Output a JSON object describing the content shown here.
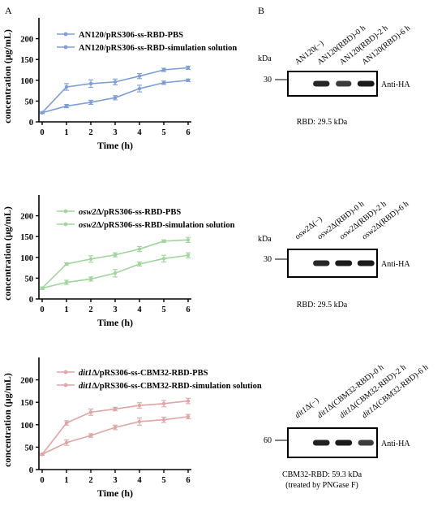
{
  "panel_labels": {
    "a": "A",
    "b": "B"
  },
  "colors": {
    "blue": "#7b9fd6",
    "green": "#9fd69a",
    "red": "#e0a4a4"
  },
  "chart_data": [
    {
      "type": "line",
      "title": "",
      "xlabel": "Time (h)",
      "ylabel": "concentration (μg/mL)",
      "xlim": [
        0,
        6
      ],
      "ylim": [
        0,
        250
      ],
      "xticks": [
        "0",
        "1",
        "2",
        "3",
        "4",
        "5",
        "6"
      ],
      "yticks": [
        "0",
        "50",
        "100",
        "150",
        "200"
      ],
      "series": [
        {
          "name": "AN120/pRS306-ss-RBD-PBS",
          "name_italic": "",
          "name_rest": "AN120/pRS306-ss-RBD-PBS",
          "color": "#7b9fd6",
          "x": [
            0,
            1,
            2,
            3,
            4,
            5,
            6
          ],
          "y": [
            22,
            38,
            47,
            58,
            80,
            94,
            100
          ],
          "err": [
            2,
            4,
            5,
            5,
            8,
            4,
            3
          ]
        },
        {
          "name": "AN120/pRS306-ss-RBD-simulation solution",
          "name_italic": "",
          "name_rest": "AN120/pRS306-ss-RBD-simulation solution",
          "color": "#7b9fd6",
          "x": [
            0,
            1,
            2,
            3,
            4,
            5,
            6
          ],
          "y": [
            22,
            84,
            92,
            96,
            110,
            125,
            130
          ],
          "err": [
            2,
            8,
            9,
            7,
            6,
            4,
            4
          ]
        }
      ]
    },
    {
      "type": "line",
      "title": "",
      "xlabel": "Time (h)",
      "ylabel": "concentration (μg/mL)",
      "xlim": [
        0,
        6
      ],
      "ylim": [
        0,
        250
      ],
      "xticks": [
        "0",
        "1",
        "2",
        "3",
        "4",
        "5",
        "6"
      ],
      "yticks": [
        "0",
        "50",
        "100",
        "150",
        "200"
      ],
      "series": [
        {
          "name": "osw2Δ/pRS306-ss-RBD-PBS",
          "name_italic": "osw2",
          "name_rest": "Δ/pRS306-ss-RBD-PBS",
          "color": "#9fd69a",
          "x": [
            0,
            1,
            2,
            3,
            4,
            5,
            6
          ],
          "y": [
            26,
            40,
            48,
            62,
            84,
            97,
            105
          ],
          "err": [
            3,
            5,
            5,
            9,
            5,
            8,
            6
          ]
        },
        {
          "name": "osw2Δ/pRS306-ss-RBD-simulation solution",
          "name_italic": "osw2",
          "name_rest": "Δ/pRS306-ss-RBD-simulation solution",
          "color": "#9fd69a",
          "x": [
            0,
            1,
            2,
            3,
            4,
            5,
            6
          ],
          "y": [
            26,
            84,
            96,
            106,
            120,
            139,
            142
          ],
          "err": [
            3,
            3,
            8,
            5,
            6,
            3,
            6
          ]
        }
      ]
    },
    {
      "type": "line",
      "title": "",
      "xlabel": "Time (h)",
      "ylabel": "concentration (μg/mL)",
      "xlim": [
        0,
        6
      ],
      "ylim": [
        0,
        250
      ],
      "xticks": [
        "0",
        "1",
        "2",
        "3",
        "4",
        "5",
        "6"
      ],
      "yticks": [
        "0",
        "50",
        "100",
        "150",
        "200"
      ],
      "series": [
        {
          "name": "dit1Δ/pRS306-ss-CBM32-RBD-PBS",
          "name_italic": "dit1",
          "name_rest": "Δ/pRS306-ss-CBM32-RBD-PBS",
          "color": "#e0a4a4",
          "x": [
            0,
            1,
            2,
            3,
            4,
            5,
            6
          ],
          "y": [
            34,
            60,
            76,
            94,
            107,
            111,
            118
          ],
          "err": [
            2,
            6,
            4,
            5,
            8,
            6,
            5
          ]
        },
        {
          "name": "dit1Δ/pRS306-ss-CBM32-RBD-simulation solution",
          "name_italic": "dit1",
          "name_rest": "Δ/pRS306-ss-CBM32-RBD-simulation solution",
          "color": "#e0a4a4",
          "x": [
            0,
            1,
            2,
            3,
            4,
            5,
            6
          ],
          "y": [
            34,
            104,
            128,
            135,
            143,
            147,
            153
          ],
          "err": [
            2,
            5,
            7,
            4,
            6,
            7,
            6
          ]
        }
      ]
    }
  ],
  "blots": [
    {
      "lanes": [
        {
          "italic": "",
          "rest": "AN120(−)"
        },
        {
          "italic": "",
          "rest": "AN120(RBD)-0 h"
        },
        {
          "italic": "",
          "rest": "AN120(RBD)-2 h"
        },
        {
          "italic": "",
          "rest": "AN120(RBD)-6 h"
        }
      ],
      "bands": [
        0,
        0.8,
        0.6,
        0.9
      ],
      "kda_label": "kDa",
      "marker": "30",
      "antibody": "Anti-HA",
      "caption": "RBD:  29.5 kDa",
      "caption2": ""
    },
    {
      "lanes": [
        {
          "italic": "osw2",
          "rest": "Δ(−)"
        },
        {
          "italic": "osw2",
          "rest": "Δ(RBD)-0 h"
        },
        {
          "italic": "osw2",
          "rest": "Δ(RBD)-2 h"
        },
        {
          "italic": "osw2",
          "rest": "Δ(RBD)-6 h"
        }
      ],
      "bands": [
        0,
        0.8,
        0.9,
        0.9
      ],
      "kda_label": "kDa",
      "marker": "30",
      "antibody": "Anti-HA",
      "caption": "RBD:  29.5 kDa",
      "caption2": ""
    },
    {
      "lanes": [
        {
          "italic": "dit1",
          "rest": "Δ(−)"
        },
        {
          "italic": "dit1",
          "rest": "Δ(CBM32-RBD)-0 h"
        },
        {
          "italic": "dit1",
          "rest": "Δ(CBM32-RBD)-2 h"
        },
        {
          "italic": "dit1",
          "rest": "Δ(CBM32-RBD)-6 h"
        }
      ],
      "bands": [
        0,
        0.85,
        0.9,
        0.6
      ],
      "kda_label": "kDa",
      "marker": "60",
      "antibody": "Anti-HA",
      "caption": "CBM32-RBD:  59.3 kDa",
      "caption2": "(treated by PNGase F)"
    }
  ]
}
